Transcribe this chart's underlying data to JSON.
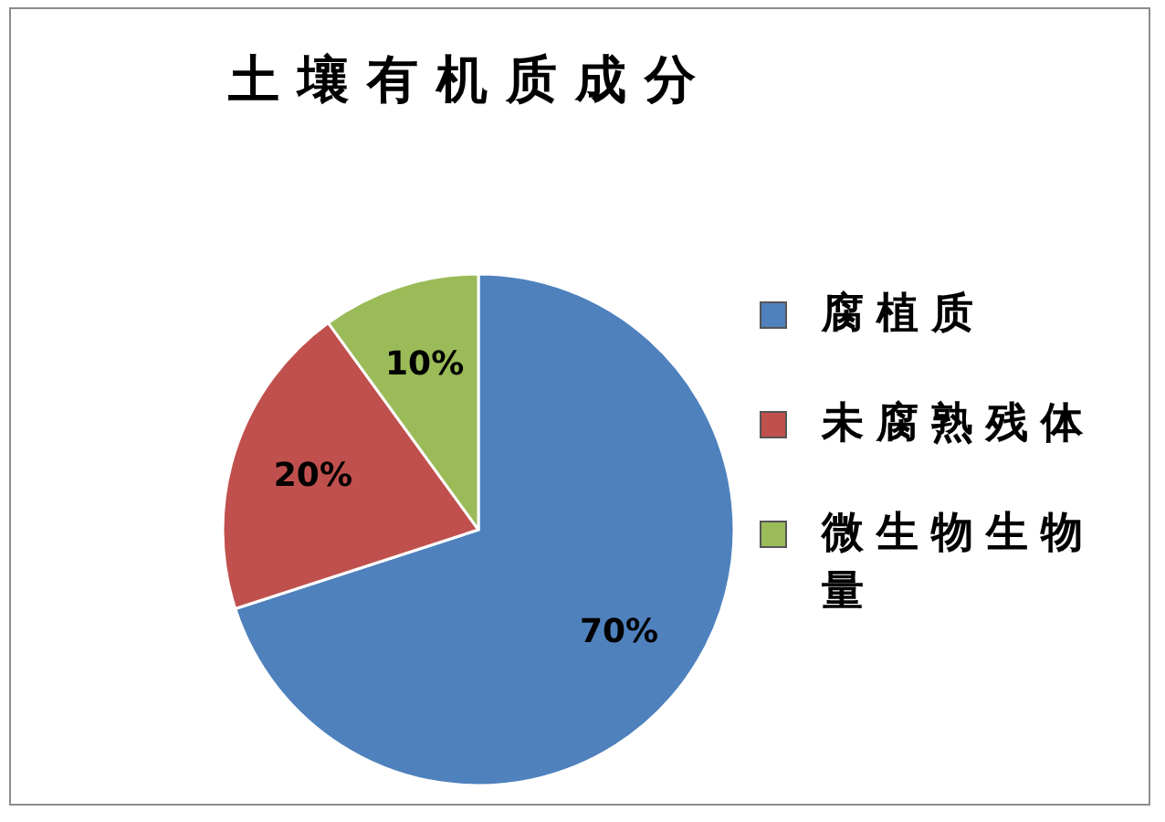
{
  "chart_data": {
    "type": "pie",
    "title": "土壤有机质成分",
    "categories": [
      "腐植质",
      "未腐熟残体",
      "微生物生物量"
    ],
    "values": [
      70,
      20,
      10
    ],
    "colors": [
      "#4f81bd",
      "#c0504d",
      "#9bbb59"
    ],
    "value_labels": [
      "70%",
      "20%",
      "10%"
    ],
    "legend": "right"
  }
}
